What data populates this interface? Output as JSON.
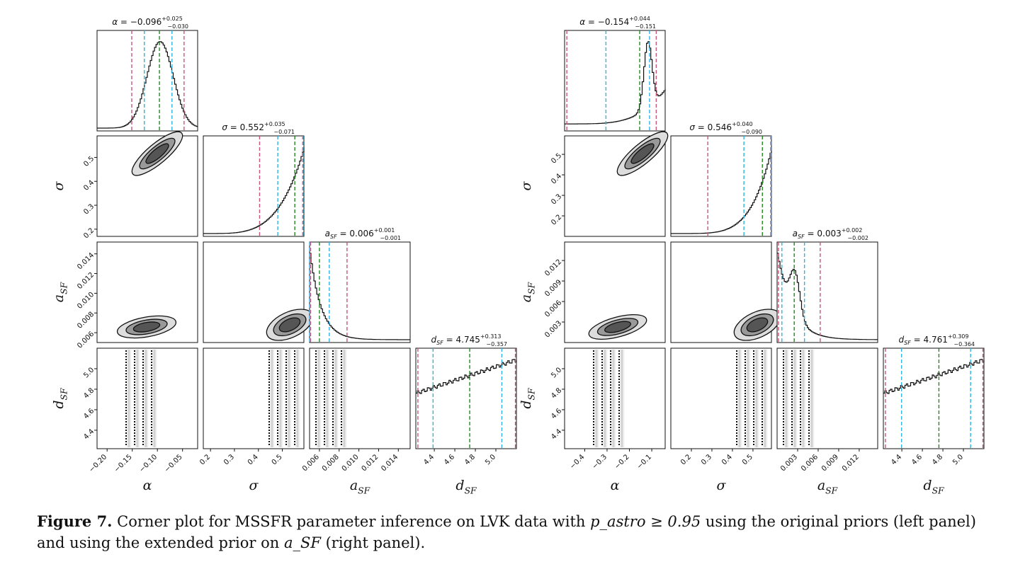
{
  "figure_label": "Figure 7.",
  "caption": {
    "part1": " Corner plot for MSSFR parameter inference on LVK data with ",
    "math1": "p_astro ≥ 0.95",
    "part2": " using the original priors (left panel) and using the extended prior on ",
    "math2": "a_SF",
    "part3": " (right panel)."
  },
  "chart_data": [
    {
      "type": "corner",
      "panel": "left",
      "parameters": [
        {
          "symbol": "α",
          "sub": "",
          "ticks": [
            "−0.20",
            "−0.15",
            "−0.10",
            "−0.05"
          ],
          "tick_values": [
            -0.2,
            -0.15,
            -0.1,
            -0.05
          ],
          "range": [
            -0.22,
            -0.02
          ]
        },
        {
          "symbol": "σ",
          "sub": "",
          "ticks": [
            "0.2",
            "0.3",
            "0.4",
            "0.5"
          ],
          "tick_values": [
            0.2,
            0.3,
            0.4,
            0.5
          ],
          "range": [
            0.17,
            0.59
          ]
        },
        {
          "symbol": "a",
          "sub": "SF",
          "ticks": [
            "0.006",
            "0.008",
            "0.010",
            "0.012",
            "0.014"
          ],
          "tick_values": [
            0.006,
            0.008,
            0.01,
            0.012,
            0.014
          ],
          "range": [
            0.005,
            0.0152
          ]
        },
        {
          "symbol": "d",
          "sub": "SF",
          "ticks": [
            "4.4",
            "4.6",
            "4.8",
            "5.0"
          ],
          "tick_values": [
            4.4,
            4.6,
            4.8,
            5.0
          ],
          "range": [
            4.22,
            5.2
          ]
        }
      ],
      "titles": [
        {
          "lhs": "α",
          "sub": "",
          "value": "−0.096",
          "plus": "+0.025",
          "minus": "−0.030"
        },
        {
          "lhs": "σ",
          "sub": "",
          "value": "0.552",
          "plus": "+0.035",
          "minus": "−0.071"
        },
        {
          "lhs": "a",
          "sub": "SF",
          "value": "0.006",
          "plus": "+0.001",
          "minus": "−0.001"
        },
        {
          "lhs": "d",
          "sub": "SF",
          "value": "4.745",
          "plus": "+0.313",
          "minus": "−0.357"
        }
      ],
      "marker_lines": [
        {
          "magenta": [
            -0.151,
            -0.047
          ],
          "cyan": [
            -0.126,
            -0.071
          ],
          "green": -0.096
        },
        {
          "magenta": [
            0.405,
            0.585
          ],
          "cyan": [
            0.481,
            0.587
          ],
          "green": 0.552
        },
        {
          "magenta": [
            0.0088,
            0.0051
          ],
          "cyan": [
            0.005,
            0.007
          ],
          "green": 0.006
        },
        {
          "magenta": [
            4.24,
            5.19
          ],
          "cyan": [
            4.388,
            5.058
          ],
          "green": 4.745
        }
      ]
    },
    {
      "type": "corner",
      "panel": "right",
      "parameters": [
        {
          "symbol": "α",
          "sub": "",
          "ticks": [
            "−0.4",
            "−0.3",
            "−0.2",
            "−0.1"
          ],
          "tick_values": [
            -0.4,
            -0.3,
            -0.2,
            -0.1
          ],
          "range": [
            -0.49,
            -0.04
          ]
        },
        {
          "symbol": "σ",
          "sub": "",
          "ticks": [
            "0.2",
            "0.3",
            "0.4",
            "0.5"
          ],
          "tick_values": [
            0.2,
            0.3,
            0.4,
            0.5
          ],
          "range": [
            0.1,
            0.59
          ]
        },
        {
          "symbol": "a",
          "sub": "SF",
          "ticks": [
            "0.003",
            "0.006",
            "0.009",
            "0.012"
          ],
          "tick_values": [
            0.003,
            0.006,
            0.009,
            0.012
          ],
          "range": [
            0.0,
            0.0147
          ]
        },
        {
          "symbol": "d",
          "sub": "SF",
          "ticks": [
            "4.4",
            "4.6",
            "4.8",
            "5.0"
          ],
          "tick_values": [
            4.4,
            4.6,
            4.8,
            5.0
          ],
          "range": [
            4.22,
            5.2
          ]
        }
      ],
      "titles": [
        {
          "lhs": "α",
          "sub": "",
          "value": "−0.154",
          "plus": "+0.044",
          "minus": "−0.151"
        },
        {
          "lhs": "σ",
          "sub": "",
          "value": "0.546",
          "plus": "+0.040",
          "minus": "−0.090"
        },
        {
          "lhs": "a",
          "sub": "SF",
          "value": "0.003",
          "plus": "+0.002",
          "minus": "−0.002"
        },
        {
          "lhs": "d",
          "sub": "SF",
          "value": "4.761",
          "plus": "+0.309",
          "minus": "−0.364"
        }
      ],
      "marker_lines": [
        {
          "magenta": [
            -0.48,
            -0.08
          ],
          "cyan": [
            -0.305,
            -0.11
          ],
          "green": -0.154
        },
        {
          "magenta": [
            0.28,
            0.59
          ],
          "cyan": [
            0.456,
            0.586
          ],
          "green": 0.546
        },
        {
          "magenta": [
            0.0063,
            0.0002
          ],
          "cyan": [
            0.0007,
            0.004
          ],
          "green": 0.0025
        },
        {
          "magenta": [
            4.24,
            5.19
          ],
          "cyan": [
            4.397,
            5.07
          ],
          "green": 4.761
        }
      ]
    }
  ],
  "colors": {
    "magenta": "#c9547a",
    "cyan": "#2fb3e6",
    "green": "#228b22",
    "line": "#111111"
  }
}
